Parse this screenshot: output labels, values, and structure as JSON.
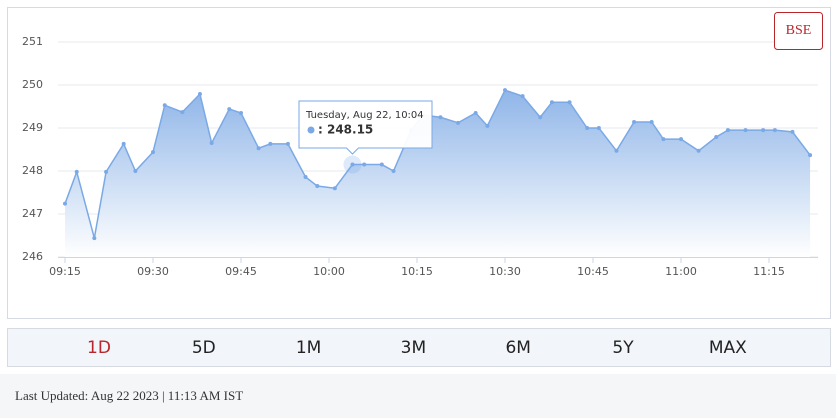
{
  "chart_data": {
    "type": "area",
    "button": "BSE",
    "color": "#7aa9e6",
    "x": [
      "09:15",
      "09:17",
      "09:20",
      "09:22",
      "09:25",
      "09:27",
      "09:30",
      "09:32",
      "09:35",
      "09:38",
      "09:40",
      "09:43",
      "09:45",
      "09:48",
      "09:50",
      "09:53",
      "09:56",
      "09:58",
      "10:01",
      "10:04",
      "10:06",
      "10:09",
      "10:11",
      "10:14",
      "10:16",
      "10:19",
      "10:22",
      "10:25",
      "10:27",
      "10:30",
      "10:33",
      "10:36",
      "10:38",
      "10:41",
      "10:44",
      "10:46",
      "10:49",
      "10:52",
      "10:55",
      "10:57",
      "11:00",
      "11:03",
      "11:06",
      "11:08",
      "11:11",
      "11:14",
      "11:16",
      "11:19",
      "11:22"
    ],
    "values": [
      247.24,
      247.98,
      246.44,
      247.98,
      248.63,
      248.0,
      248.44,
      249.53,
      249.37,
      249.79,
      248.65,
      249.44,
      249.35,
      248.53,
      248.63,
      248.63,
      247.86,
      247.65,
      247.6,
      248.15,
      248.15,
      248.15,
      248.0,
      248.95,
      249.3,
      249.25,
      249.12,
      249.35,
      249.05,
      249.88,
      249.74,
      249.25,
      249.6,
      249.6,
      249.0,
      249.0,
      248.47,
      249.14,
      249.14,
      248.74,
      248.74,
      248.47,
      248.79,
      248.95,
      248.95,
      248.95,
      248.95,
      248.91,
      248.37
    ],
    "xlim": [
      "09:15",
      "11:24"
    ],
    "xticks": [
      "09:15",
      "09:30",
      "09:45",
      "10:00",
      "10:15",
      "10:30",
      "10:45",
      "11:00",
      "11:15"
    ],
    "ylim": [
      246,
      251
    ],
    "yticks": [
      246,
      247,
      248,
      249,
      250,
      251
    ],
    "grid": true,
    "tooltip": {
      "title": "Tuesday, Aug 22, 10:04",
      "text": ": 248.15",
      "index": 19
    }
  },
  "tabs": {
    "items": [
      "1D",
      "5D",
      "1M",
      "3M",
      "6M",
      "5Y",
      "MAX"
    ],
    "active_index": 0
  },
  "footer": "Last Updated: Aug 22 2023 | 11:13 AM IST"
}
